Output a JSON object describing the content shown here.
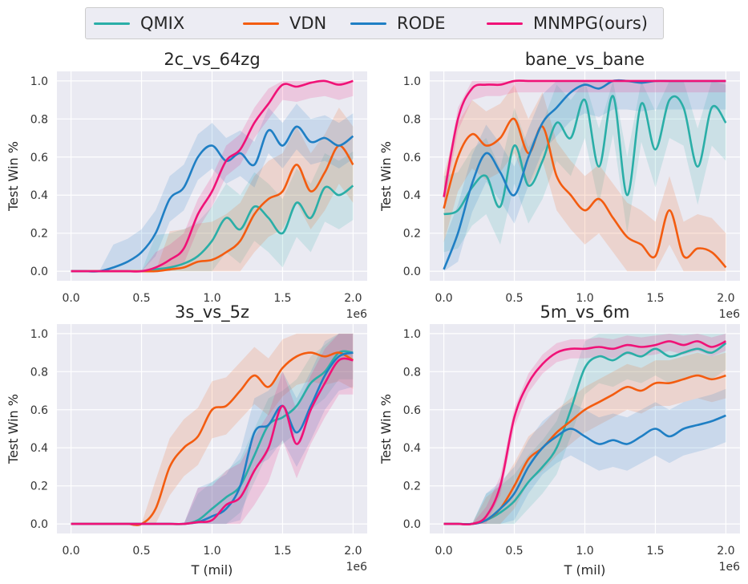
{
  "legend": [
    {
      "name": "QMIX",
      "color": "#2aaea7"
    },
    {
      "name": "VDN",
      "color": "#f35c10"
    },
    {
      "name": "RODE",
      "color": "#1f7fc4"
    },
    {
      "name": "MNMPG(ours)",
      "color": "#f01277"
    }
  ],
  "chart_data": [
    {
      "type": "line",
      "title": "2c_vs_64zg",
      "xlabel": "",
      "ylabel": "Test Win %",
      "x_offset_label": "1e6",
      "xlim": [
        -0.1,
        2.1
      ],
      "ylim": [
        -0.05,
        1.05
      ],
      "xticks": [
        0.0,
        0.5,
        1.0,
        1.5,
        2.0
      ],
      "xtick_labels": [
        "0.0",
        "0.5",
        "1.0",
        "1.5",
        "2.0"
      ],
      "yticks": [
        0.0,
        0.2,
        0.4,
        0.6,
        0.8,
        1.0
      ],
      "ytick_labels": [
        "0.0",
        "0.2",
        "0.4",
        "0.6",
        "0.8",
        "1.0"
      ],
      "x": [
        0.0,
        0.1,
        0.2,
        0.3,
        0.4,
        0.5,
        0.6,
        0.7,
        0.8,
        0.9,
        1.0,
        1.1,
        1.2,
        1.3,
        1.4,
        1.5,
        1.6,
        1.7,
        1.8,
        1.9,
        2.0
      ],
      "series": [
        {
          "name": "QMIX",
          "band": 0.18,
          "values": [
            0,
            0,
            0,
            0,
            0,
            0,
            0.01,
            0.02,
            0.04,
            0.08,
            0.16,
            0.28,
            0.22,
            0.34,
            0.28,
            0.2,
            0.36,
            0.28,
            0.44,
            0.4,
            0.45
          ]
        },
        {
          "name": "VDN",
          "band": 0.2,
          "values": [
            0,
            0,
            0,
            0,
            0,
            0,
            0,
            0.01,
            0.02,
            0.05,
            0.06,
            0.1,
            0.16,
            0.3,
            0.38,
            0.42,
            0.56,
            0.42,
            0.52,
            0.66,
            0.56
          ]
        },
        {
          "name": "RODE",
          "band": 0.12,
          "values": [
            0,
            0,
            0,
            0.02,
            0.05,
            0.1,
            0.2,
            0.38,
            0.44,
            0.6,
            0.66,
            0.58,
            0.62,
            0.56,
            0.74,
            0.66,
            0.76,
            0.68,
            0.7,
            0.66,
            0.71
          ]
        },
        {
          "name": "MNMPG(ours)",
          "band": 0.08,
          "values": [
            0,
            0,
            0,
            0,
            0,
            0,
            0.02,
            0.06,
            0.12,
            0.3,
            0.42,
            0.58,
            0.64,
            0.78,
            0.88,
            0.98,
            0.97,
            0.99,
            1.0,
            0.98,
            1.0
          ]
        }
      ]
    },
    {
      "type": "line",
      "title": "bane_vs_bane",
      "xlabel": "",
      "ylabel": "Test Win %",
      "x_offset_label": "1e6",
      "xlim": [
        -0.1,
        2.1
      ],
      "ylim": [
        -0.05,
        1.05
      ],
      "xticks": [
        0.0,
        0.5,
        1.0,
        1.5,
        2.0
      ],
      "xtick_labels": [
        "0.0",
        "0.5",
        "1.0",
        "1.5",
        "2.0"
      ],
      "yticks": [
        0.0,
        0.2,
        0.4,
        0.6,
        0.8,
        1.0
      ],
      "ytick_labels": [
        "0.0",
        "0.2",
        "0.4",
        "0.6",
        "0.8",
        "1.0"
      ],
      "x": [
        0.0,
        0.1,
        0.2,
        0.3,
        0.4,
        0.5,
        0.6,
        0.7,
        0.8,
        0.9,
        1.0,
        1.1,
        1.2,
        1.3,
        1.4,
        1.5,
        1.6,
        1.7,
        1.8,
        1.9,
        2.0
      ],
      "series": [
        {
          "name": "QMIX",
          "band": 0.2,
          "values": [
            0.3,
            0.32,
            0.44,
            0.5,
            0.34,
            0.66,
            0.45,
            0.58,
            0.78,
            0.7,
            0.9,
            0.55,
            0.92,
            0.4,
            0.88,
            0.64,
            0.9,
            0.86,
            0.55,
            0.86,
            0.78
          ]
        },
        {
          "name": "VDN",
          "band": 0.18,
          "values": [
            0.33,
            0.6,
            0.72,
            0.66,
            0.7,
            0.8,
            0.62,
            0.76,
            0.5,
            0.4,
            0.32,
            0.38,
            0.28,
            0.18,
            0.14,
            0.08,
            0.32,
            0.08,
            0.12,
            0.1,
            0.02
          ]
        },
        {
          "name": "RODE",
          "band": 0.15,
          "values": [
            0.01,
            0.2,
            0.46,
            0.62,
            0.52,
            0.4,
            0.6,
            0.78,
            0.86,
            0.94,
            0.98,
            0.96,
            1.0,
            1.0,
            0.99,
            1.0,
            1.0,
            1.0,
            1.0,
            1.0,
            1.0
          ]
        },
        {
          "name": "MNMPG(ours)",
          "band": 0.06,
          "values": [
            0.39,
            0.8,
            0.96,
            0.98,
            0.98,
            1.0,
            1.0,
            1.0,
            1.0,
            1.0,
            1.0,
            1.0,
            1.0,
            1.0,
            1.0,
            1.0,
            1.0,
            1.0,
            1.0,
            1.0,
            1.0
          ]
        }
      ]
    },
    {
      "type": "line",
      "title": "3s_vs_5z",
      "xlabel": "T (mil)",
      "ylabel": "Test Win %",
      "x_offset_label": "1e6",
      "xlim": [
        -0.1,
        2.1
      ],
      "ylim": [
        -0.05,
        1.05
      ],
      "xticks": [
        0.0,
        0.5,
        1.0,
        1.5,
        2.0
      ],
      "xtick_labels": [
        "0.0",
        "0.5",
        "1.0",
        "1.5",
        "2.0"
      ],
      "yticks": [
        0.0,
        0.2,
        0.4,
        0.6,
        0.8,
        1.0
      ],
      "ytick_labels": [
        "0.0",
        "0.2",
        "0.4",
        "0.6",
        "0.8",
        "1.0"
      ],
      "x": [
        0.0,
        0.1,
        0.2,
        0.3,
        0.4,
        0.5,
        0.6,
        0.7,
        0.8,
        0.9,
        1.0,
        1.1,
        1.2,
        1.3,
        1.4,
        1.5,
        1.6,
        1.7,
        1.8,
        1.9,
        2.0
      ],
      "series": [
        {
          "name": "QMIX",
          "band": 0.14,
          "values": [
            0,
            0,
            0,
            0,
            0,
            0,
            0,
            0,
            0,
            0.02,
            0.08,
            0.14,
            0.2,
            0.36,
            0.52,
            0.56,
            0.62,
            0.74,
            0.8,
            0.9,
            0.9
          ]
        },
        {
          "name": "VDN",
          "band": 0.15,
          "values": [
            0,
            0,
            0,
            0,
            0,
            0,
            0.08,
            0.3,
            0.4,
            0.46,
            0.6,
            0.62,
            0.7,
            0.78,
            0.72,
            0.82,
            0.88,
            0.9,
            0.88,
            0.9,
            0.86
          ]
        },
        {
          "name": "RODE",
          "band": 0.18,
          "values": [
            0,
            0,
            0,
            0,
            0,
            0,
            0,
            0,
            0,
            0.01,
            0.04,
            0.08,
            0.2,
            0.48,
            0.52,
            0.62,
            0.48,
            0.62,
            0.78,
            0.88,
            0.9
          ]
        },
        {
          "name": "MNMPG(ours)",
          "band": 0.18,
          "values": [
            0,
            0,
            0,
            0,
            0,
            0,
            0,
            0,
            0,
            0.01,
            0.02,
            0.1,
            0.14,
            0.28,
            0.4,
            0.62,
            0.42,
            0.6,
            0.74,
            0.86,
            0.86
          ]
        }
      ]
    },
    {
      "type": "line",
      "title": "5m_vs_6m",
      "xlabel": "T (mil)",
      "ylabel": "Test Win %",
      "x_offset_label": "1e6",
      "xlim": [
        -0.1,
        2.1
      ],
      "ylim": [
        -0.05,
        1.05
      ],
      "xticks": [
        0.0,
        0.5,
        1.0,
        1.5,
        2.0
      ],
      "xtick_labels": [
        "0.0",
        "0.5",
        "1.0",
        "1.5",
        "2.0"
      ],
      "yticks": [
        0.0,
        0.2,
        0.4,
        0.6,
        0.8,
        1.0
      ],
      "ytick_labels": [
        "0.0",
        "0.2",
        "0.4",
        "0.6",
        "0.8",
        "1.0"
      ],
      "x": [
        0.0,
        0.1,
        0.2,
        0.3,
        0.4,
        0.5,
        0.6,
        0.7,
        0.8,
        0.9,
        1.0,
        1.1,
        1.2,
        1.3,
        1.4,
        1.5,
        1.6,
        1.7,
        1.8,
        1.9,
        2.0
      ],
      "series": [
        {
          "name": "QMIX",
          "band": 0.14,
          "values": [
            0,
            0,
            0,
            0.02,
            0.06,
            0.12,
            0.22,
            0.3,
            0.4,
            0.6,
            0.82,
            0.88,
            0.86,
            0.9,
            0.88,
            0.92,
            0.88,
            0.9,
            0.92,
            0.9,
            0.95
          ]
        },
        {
          "name": "VDN",
          "band": 0.12,
          "values": [
            0,
            0,
            0,
            0.02,
            0.08,
            0.2,
            0.34,
            0.4,
            0.48,
            0.54,
            0.6,
            0.64,
            0.68,
            0.72,
            0.7,
            0.74,
            0.74,
            0.76,
            0.78,
            0.76,
            0.78
          ]
        },
        {
          "name": "RODE",
          "band": 0.14,
          "values": [
            0,
            0,
            0,
            0.02,
            0.08,
            0.16,
            0.3,
            0.4,
            0.46,
            0.5,
            0.46,
            0.42,
            0.44,
            0.42,
            0.46,
            0.5,
            0.46,
            0.5,
            0.52,
            0.54,
            0.57
          ]
        },
        {
          "name": "MNMPG(ours)",
          "band": 0.05,
          "values": [
            0,
            0,
            0,
            0.04,
            0.2,
            0.56,
            0.74,
            0.84,
            0.9,
            0.92,
            0.92,
            0.93,
            0.92,
            0.94,
            0.93,
            0.94,
            0.96,
            0.94,
            0.96,
            0.93,
            0.96
          ]
        }
      ]
    }
  ]
}
